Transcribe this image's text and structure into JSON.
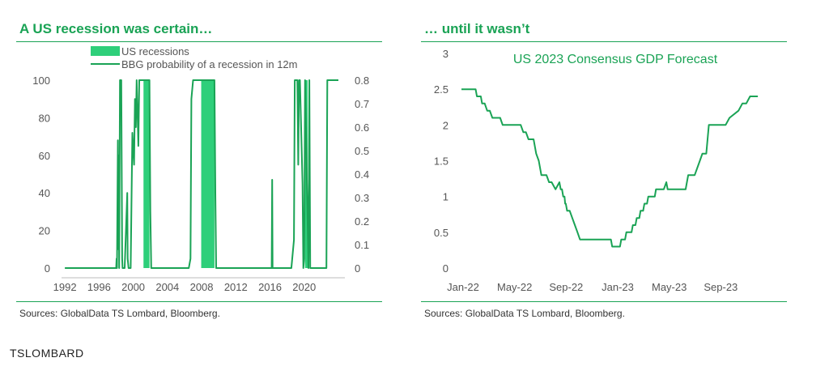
{
  "left_panel": {
    "title": "A US recession was certain…",
    "source": "Sources: GlobalData TS Lombard, Bloomberg."
  },
  "right_panel": {
    "title": "… until it wasn’t",
    "source": "Sources: GlobalData TS Lombard, Bloomberg."
  },
  "brand": "TSLOMBARD",
  "colors": {
    "accent": "#1aa355",
    "bar": "#2ecf7a",
    "line": "#1aa355",
    "text": "#555555"
  },
  "chart_data": [
    {
      "type": "line",
      "title": "",
      "legend": [
        {
          "label": "US recessions",
          "style": "fill"
        },
        {
          "label": "BBG probability of a recession in 12m",
          "style": "line"
        }
      ],
      "legend_position": "top",
      "x_range": [
        1991.8,
        2024.0
      ],
      "x_ticks": [
        "1992",
        "1996",
        "2000",
        "2004",
        "2008",
        "2012",
        "2016",
        "2020"
      ],
      "x_tick_values": [
        1992,
        1996,
        2000,
        2004,
        2008,
        2012,
        2016,
        2020
      ],
      "ylim_left": [
        0,
        100
      ],
      "yticks_left": [
        "0",
        "20",
        "40",
        "60",
        "80",
        "100"
      ],
      "ylim_right": [
        0,
        0.8
      ],
      "yticks_right": [
        "0",
        "0.1",
        "0.2",
        "0.3",
        "0.4",
        "0.5",
        "0.6",
        "0.7",
        "0.8"
      ],
      "recession_bars": [
        {
          "start": 2001.2,
          "end": 2001.9,
          "label": "US recessions"
        },
        {
          "start": 2007.95,
          "end": 2009.5,
          "label": "US recessions"
        },
        {
          "start": 2020.1,
          "end": 2020.4,
          "label": "US recessions"
        }
      ],
      "series": [
        {
          "name": "BBG probability of a recession in 12m",
          "x": [
            1992,
            1998.0,
            1998.05,
            1998.1,
            1998.2,
            1998.25,
            1998.3,
            1998.35,
            1998.45,
            1998.6,
            1998.7,
            1998.75,
            1999.0,
            1999.3,
            1999.35,
            1999.45,
            1999.5,
            1999.7,
            1999.9,
            2000.1,
            2000.2,
            2000.3,
            2000.4,
            2000.5,
            2000.6,
            2000.7,
            2000.8,
            2001.0,
            2001.2,
            2001.5,
            2001.9,
            2002.0,
            2002.1,
            2006.5,
            2006.7,
            2006.8,
            2007.0,
            2007.3,
            2008.0,
            2008.5,
            2009.0,
            2009.5,
            2009.6,
            2009.7,
            2016.0,
            2016.2,
            2016.25,
            2016.3,
            2016.4,
            2018.5,
            2018.8,
            2018.9,
            2019.2,
            2019.3,
            2019.4,
            2019.5,
            2019.8,
            2019.9,
            2020.0,
            2020.1,
            2020.5,
            2020.6,
            2020.7,
            2022.5,
            2022.6,
            2022.7,
            2024.0
          ],
          "y": [
            0,
            0,
            5,
            0,
            68,
            10,
            60,
            0,
            100,
            100,
            5,
            0,
            0,
            40,
            5,
            0,
            0,
            0,
            72,
            55,
            90,
            75,
            100,
            82,
            65,
            100,
            100,
            100,
            100,
            100,
            100,
            30,
            0,
            0,
            5,
            90,
            100,
            100,
            100,
            100,
            100,
            100,
            40,
            0,
            0,
            0,
            47,
            0,
            0,
            0,
            15,
            100,
            100,
            55,
            100,
            100,
            45,
            0,
            5,
            100,
            0,
            100,
            0,
            0,
            0,
            100,
            100
          ]
        }
      ]
    },
    {
      "type": "line",
      "title": "US 2023 Consensus GDP Forecast",
      "legend_position": "none",
      "x_ticks": [
        "Jan-22",
        "May-22",
        "Sep-22",
        "Jan-23",
        "May-23",
        "Sep-23"
      ],
      "x_tick_values": [
        0,
        4,
        8,
        12,
        16,
        20
      ],
      "x_range": [
        0,
        24
      ],
      "ylim": [
        0,
        3
      ],
      "yticks": [
        "0",
        "0.5",
        "1",
        "1.5",
        "2",
        "2.5",
        "3"
      ],
      "series": [
        {
          "name": "",
          "x": [
            0,
            1.1,
            1.2,
            1.5,
            1.6,
            1.8,
            2.0,
            2.2,
            2.4,
            2.6,
            3.0,
            3.2,
            3.6,
            3.8,
            4.6,
            4.8,
            5.0,
            5.2,
            5.6,
            5.8,
            6.0,
            6.2,
            6.6,
            6.8,
            7.0,
            7.3,
            7.6,
            7.7,
            7.8,
            7.9,
            8.0,
            8.05,
            8.1,
            8.2,
            8.4,
            8.6,
            8.8,
            9.0,
            9.2,
            9.4,
            9.6,
            9.8,
            10.0,
            11.6,
            11.7,
            12.3,
            12.4,
            12.7,
            12.8,
            13.2,
            13.3,
            13.5,
            13.6,
            13.8,
            13.9,
            14.1,
            14.2,
            14.4,
            14.5,
            14.7,
            14.8,
            15.0,
            15.1,
            15.3,
            15.5,
            15.7,
            15.9,
            16.0,
            16.1,
            16.2,
            16.3,
            16.5,
            17.4,
            17.6,
            17.9,
            18.1,
            18.5,
            18.7,
            19.0,
            19.2,
            19.5,
            19.7,
            20.5,
            20.8,
            21.5,
            21.8,
            22.1,
            22.4,
            23.0
          ],
          "y": [
            2.5,
            2.5,
            2.4,
            2.4,
            2.3,
            2.3,
            2.2,
            2.2,
            2.1,
            2.1,
            2.1,
            2.0,
            2.0,
            2.0,
            2.0,
            1.9,
            1.9,
            1.8,
            1.8,
            1.6,
            1.5,
            1.3,
            1.3,
            1.2,
            1.2,
            1.1,
            1.2,
            1.1,
            1.1,
            1.0,
            1.0,
            0.9,
            0.9,
            0.8,
            0.8,
            0.7,
            0.6,
            0.5,
            0.4,
            0.4,
            0.4,
            0.4,
            0.4,
            0.4,
            0.3,
            0.3,
            0.4,
            0.4,
            0.5,
            0.5,
            0.6,
            0.6,
            0.7,
            0.7,
            0.8,
            0.8,
            0.9,
            0.9,
            1.0,
            1.0,
            1.0,
            1.0,
            1.1,
            1.1,
            1.1,
            1.1,
            1.2,
            1.1,
            1.1,
            1.1,
            1.1,
            1.1,
            1.1,
            1.3,
            1.3,
            1.3,
            1.5,
            1.6,
            1.6,
            2.0,
            2.0,
            2.0,
            2.0,
            2.1,
            2.2,
            2.3,
            2.3,
            2.4,
            2.4
          ]
        }
      ]
    }
  ]
}
